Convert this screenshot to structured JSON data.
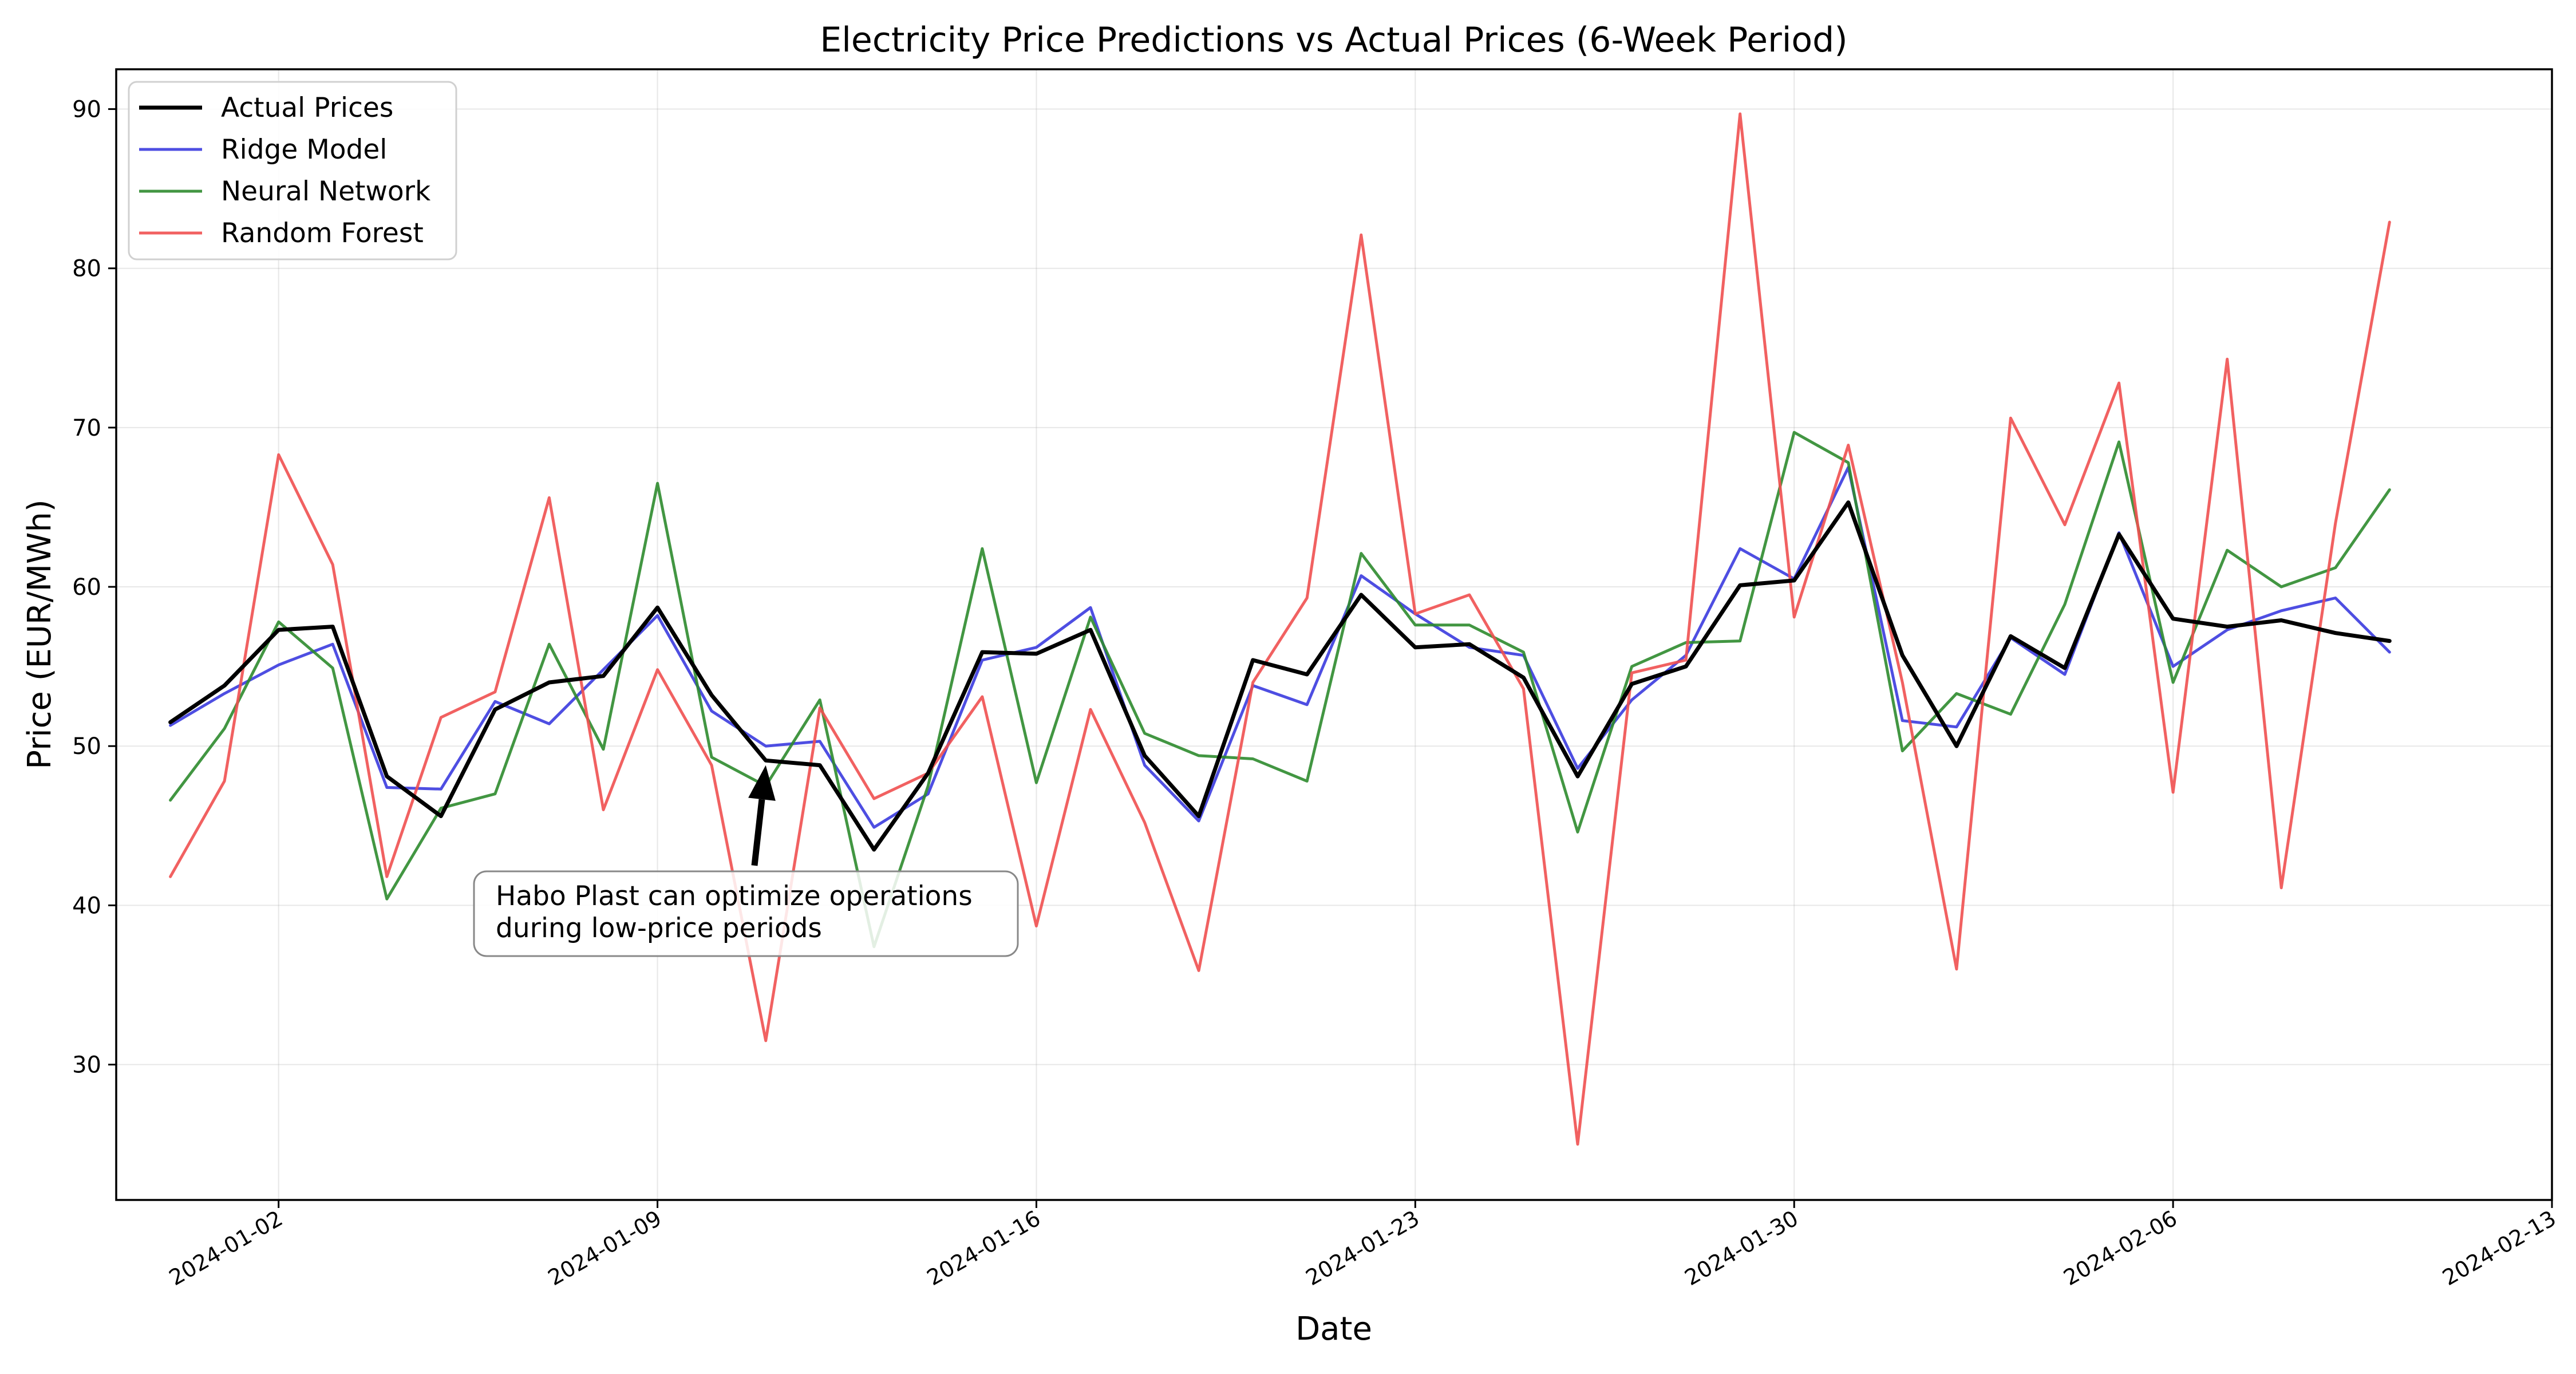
{
  "chart_data": {
    "type": "line",
    "title": "Electricity Price Predictions vs Actual Prices (6-Week Period)",
    "xlabel": "Date",
    "ylabel": "Price (EUR/MWh)",
    "x_start": "2023-12-31",
    "xlim": [
      "2023-12-30",
      "2024-02-13"
    ],
    "ylim": [
      21.5,
      92.5
    ],
    "x_ticks": [
      "2024-01-02",
      "2024-01-09",
      "2024-01-16",
      "2024-01-23",
      "2024-01-30",
      "2024-02-06",
      "2024-02-13"
    ],
    "y_ticks": [
      30,
      40,
      50,
      60,
      70,
      80,
      90
    ],
    "grid": true,
    "legend_position": "top-left",
    "series": [
      {
        "name": "Actual Prices",
        "color": "#000000",
        "values": [
          51.5,
          53.8,
          57.3,
          57.5,
          48.1,
          45.6,
          52.3,
          54.0,
          54.4,
          58.7,
          53.2,
          49.1,
          48.8,
          43.5,
          48.3,
          55.9,
          55.8,
          57.3,
          49.4,
          45.6,
          55.4,
          54.5,
          59.5,
          56.2,
          56.4,
          54.3,
          48.1,
          53.9,
          55.0,
          60.1,
          60.4,
          65.3,
          55.7,
          50.0,
          56.9,
          54.9,
          63.3,
          58.0,
          57.5,
          57.9,
          57.1,
          56.6
        ]
      },
      {
        "name": "Ridge Model",
        "color": "#3b3bdf",
        "values": [
          51.3,
          53.3,
          55.1,
          56.4,
          47.4,
          47.3,
          52.8,
          51.4,
          54.8,
          58.2,
          52.2,
          50.0,
          50.3,
          44.9,
          47.0,
          55.4,
          56.2,
          58.7,
          48.8,
          45.3,
          53.8,
          52.6,
          60.7,
          58.3,
          56.2,
          55.7,
          48.6,
          52.9,
          55.7,
          62.4,
          60.5,
          67.5,
          51.6,
          51.2,
          56.8,
          54.5,
          63.4,
          55.0,
          57.3,
          58.5,
          59.3,
          55.9
        ]
      },
      {
        "name": "Neural Network",
        "color": "#2e8b2e",
        "values": [
          46.6,
          51.1,
          57.8,
          54.9,
          40.4,
          46.1,
          47.0,
          56.4,
          49.8,
          66.5,
          49.3,
          47.5,
          52.9,
          37.4,
          47.5,
          62.4,
          47.7,
          58.1,
          50.8,
          49.4,
          49.2,
          47.8,
          62.1,
          57.6,
          57.6,
          55.9,
          44.6,
          55.0,
          56.5,
          56.6,
          69.7,
          67.8,
          49.7,
          53.3,
          52.0,
          58.9,
          69.1,
          54.0,
          62.3,
          60.0,
          61.2,
          66.1
        ]
      },
      {
        "name": "Random Forest",
        "color": "#ef5050",
        "values": [
          41.8,
          47.8,
          68.3,
          61.4,
          41.8,
          51.8,
          53.4,
          65.6,
          46.0,
          54.8,
          48.8,
          31.5,
          52.4,
          46.7,
          48.3,
          53.1,
          38.7,
          52.3,
          45.2,
          35.9,
          54.0,
          59.3,
          82.1,
          58.3,
          59.5,
          53.6,
          25.0,
          54.6,
          55.4,
          89.7,
          58.1,
          68.9,
          54.0,
          36.0,
          70.6,
          63.9,
          72.8,
          47.1,
          74.3,
          41.1,
          64.0,
          82.9
        ]
      }
    ],
    "annotations": [
      {
        "text_lines": [
          "Habo Plast can optimize operations",
          "during low-price periods"
        ],
        "target": [
          "2024-01-11",
          48.8
        ],
        "arrow_from": [
          "2024-01-10 19:00",
          42.5
        ]
      }
    ]
  }
}
